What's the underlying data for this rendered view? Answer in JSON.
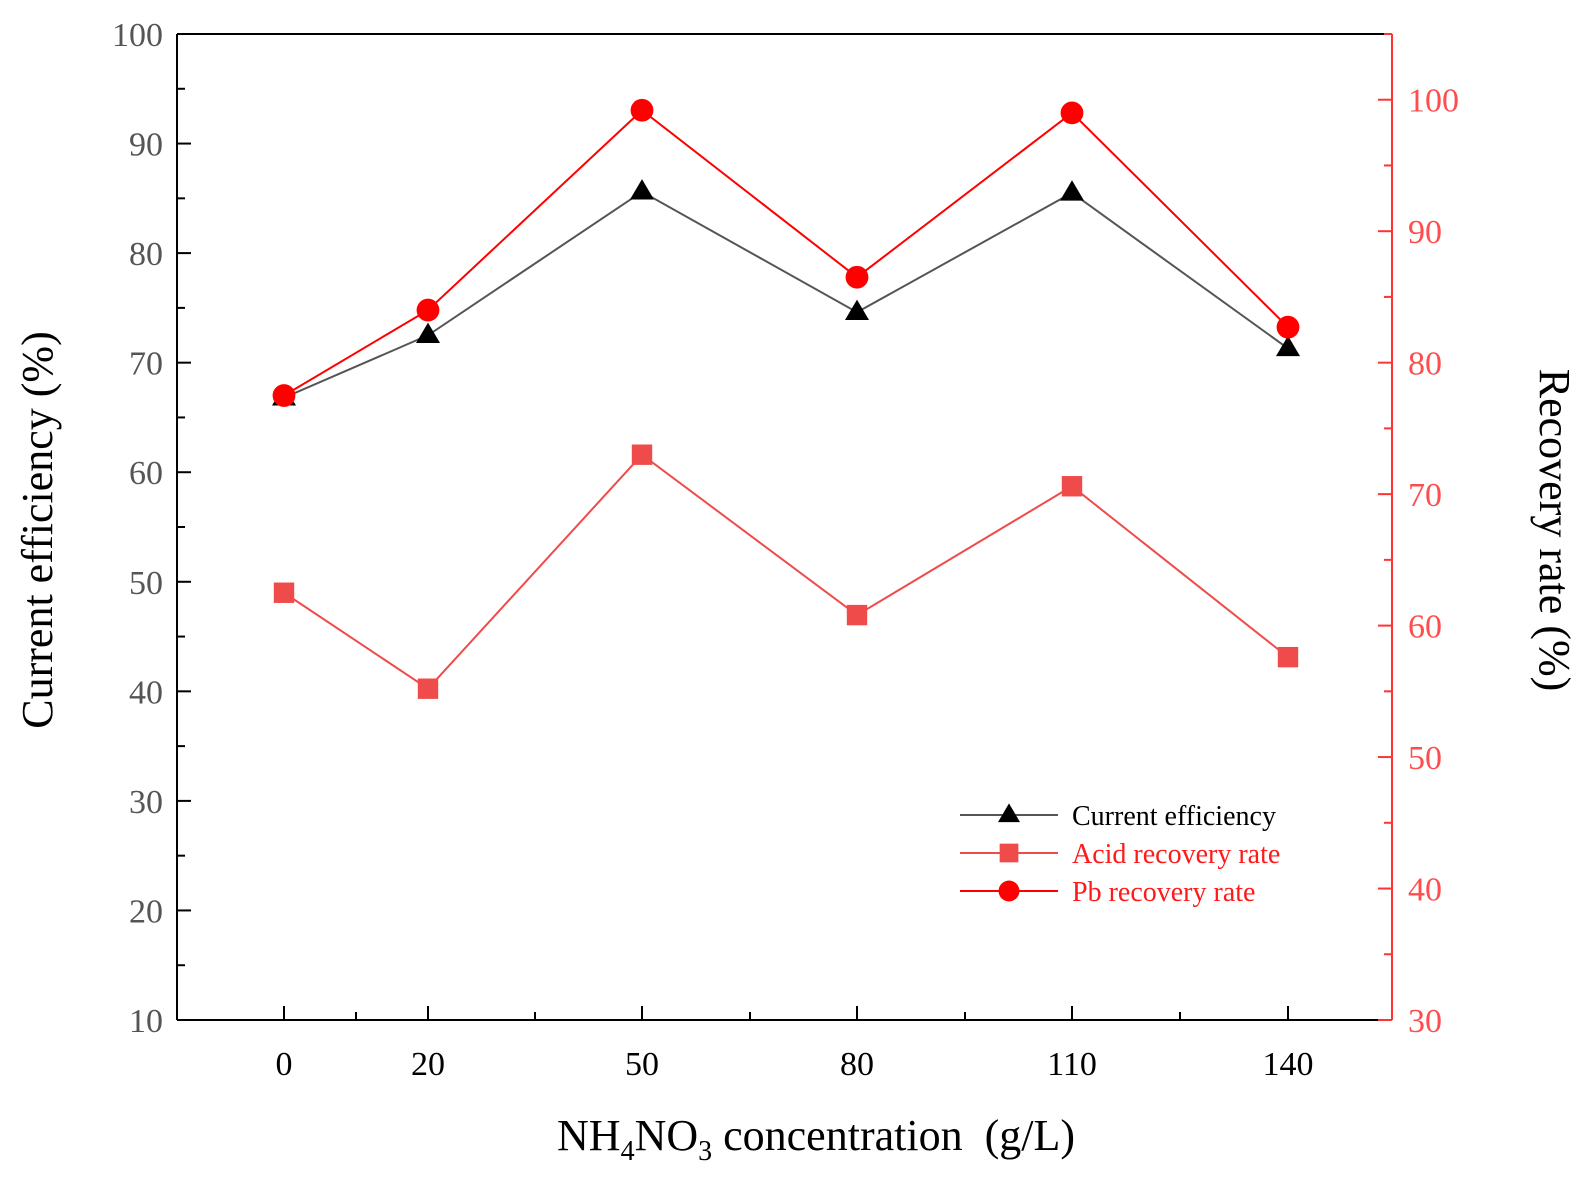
{
  "chart_data": {
    "type": "line",
    "categories": [
      "0",
      "20",
      "50",
      "80",
      "110",
      "140"
    ],
    "xlabel": {
      "prefix": "NH",
      "sub1": "4",
      "mid": "NO",
      "sub2": "3",
      "suffix": " concentration  (g/L)"
    },
    "ylabel_left": "Current efficiency (%)",
    "ylabel_right": "Recovery rate (%)",
    "ylim_left": [
      10,
      100
    ],
    "ylim_right": [
      30,
      105
    ],
    "yticks_left": [
      10,
      20,
      30,
      40,
      50,
      60,
      70,
      80,
      90,
      100
    ],
    "yticks_right": [
      30,
      40,
      50,
      60,
      70,
      80,
      90,
      100
    ],
    "series": [
      {
        "name": "Current efficiency",
        "axis": "left",
        "marker": "triangle",
        "color": "#000000",
        "line_color": "#555555",
        "values": [
          66.8,
          72.5,
          85.6,
          74.6,
          85.5,
          71.3
        ]
      },
      {
        "name": "Acid recovery rate",
        "axis": "right",
        "marker": "square",
        "color": "#f04b4b",
        "line_color": "#f04b4b",
        "values": [
          62.5,
          55.2,
          73.0,
          60.8,
          70.6,
          57.6
        ]
      },
      {
        "name": "Pb recovery rate",
        "axis": "right",
        "marker": "circle",
        "color": "#ff0000",
        "line_color": "#ff0000",
        "values": [
          77.5,
          84.0,
          99.2,
          86.5,
          99.0,
          82.7
        ]
      }
    ],
    "legend": {
      "position": "bottom-right",
      "entries": [
        "Current efficiency",
        "Acid recovery rate",
        "Pb recovery rate"
      ],
      "text_colors": [
        "#000000",
        "#ff1a1a",
        "#ff1a1a"
      ]
    }
  }
}
